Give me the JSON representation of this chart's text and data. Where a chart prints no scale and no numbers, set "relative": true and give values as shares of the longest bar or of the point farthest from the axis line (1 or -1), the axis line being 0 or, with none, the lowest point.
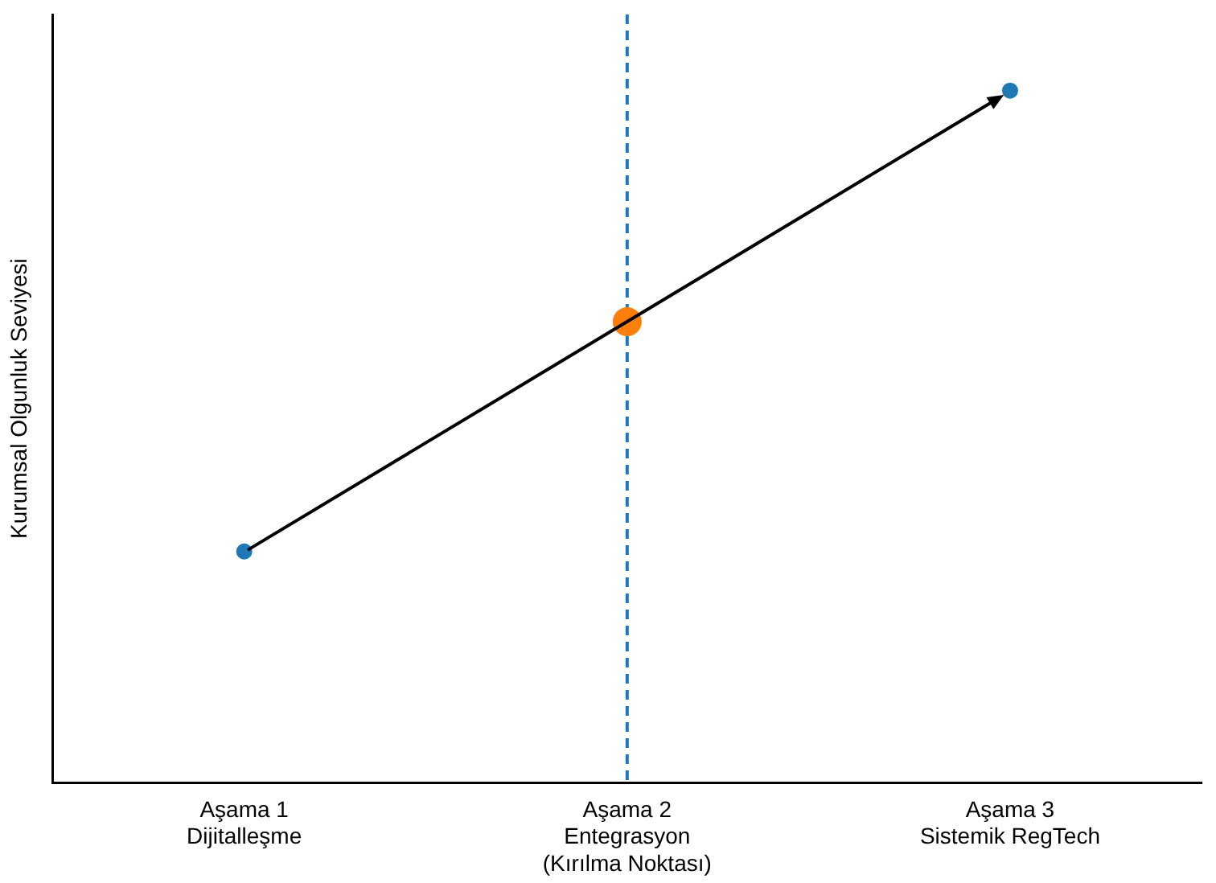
{
  "chart_data": {
    "type": "scatter",
    "relative": true,
    "ylabel": "Kurumsal Olgunluk Seviyesi",
    "categories": [
      "Aşama 1\nDijitalleşme",
      "Aşama 2\nEntegrasyon\n(Kırılma Noktası)",
      "Aşama 3\nSistemik RegTech"
    ],
    "grid": false,
    "legend": false,
    "marker": "circle",
    "series": [
      {
        "color": "#1f77b4",
        "values": [
          0.334,
          null,
          1
        ]
      },
      {
        "color": "#ff7f0e",
        "values": [
          null,
          0.666,
          null
        ]
      }
    ],
    "ref_lines": [
      {
        "axis": "x",
        "value": "Aşama 2\nEntegrasyon\n(Kırılma Noktası)",
        "color": "#1f77b4",
        "line_style": "dashed"
      }
    ]
  }
}
